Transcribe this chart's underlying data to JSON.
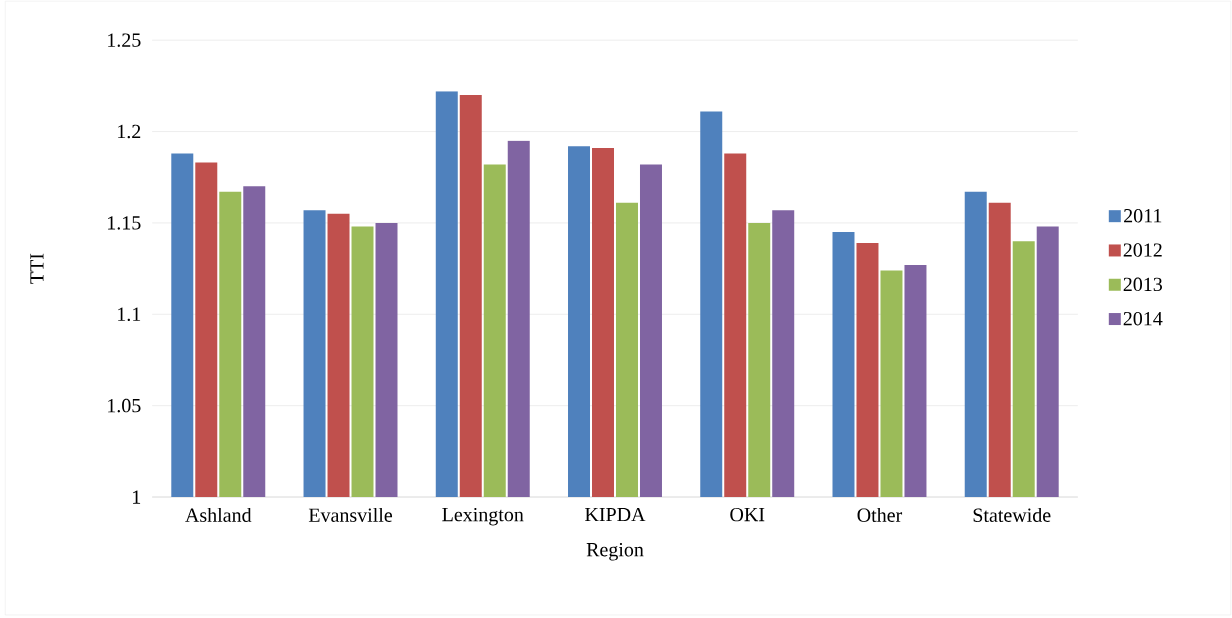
{
  "chart_data": {
    "type": "bar",
    "xlabel": "Region",
    "ylabel": "TTI",
    "categories": [
      "Ashland",
      "Evansville",
      "Lexington",
      "KIPDA",
      "OKI",
      "Other",
      "Statewide"
    ],
    "series": [
      {
        "name": "2011",
        "color": "#4f81bd",
        "values": [
          1.188,
          1.157,
          1.222,
          1.192,
          1.211,
          1.145,
          1.167
        ]
      },
      {
        "name": "2012",
        "color": "#c0504d",
        "values": [
          1.183,
          1.155,
          1.22,
          1.191,
          1.188,
          1.139,
          1.161
        ]
      },
      {
        "name": "2013",
        "color": "#9bbb59",
        "values": [
          1.167,
          1.148,
          1.182,
          1.161,
          1.15,
          1.124,
          1.14
        ]
      },
      {
        "name": "2014",
        "color": "#8064a2",
        "values": [
          1.17,
          1.15,
          1.195,
          1.182,
          1.157,
          1.127,
          1.148
        ]
      }
    ],
    "ylim": [
      1,
      1.25
    ],
    "yticks": [
      1,
      1.05,
      1.1,
      1.15,
      1.2,
      1.25
    ],
    "grid": "y",
    "legend": "right"
  }
}
